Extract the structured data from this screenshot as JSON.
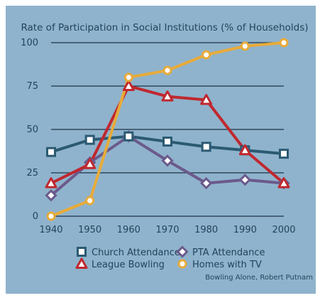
{
  "chart_data": {
    "type": "line",
    "title": "Rate of Participation in Social Institutions (% of Households)",
    "x": [
      1940,
      1950,
      1960,
      1970,
      1980,
      1990,
      2000
    ],
    "xticks": [
      "1940",
      "1950",
      "1960",
      "1970",
      "1980",
      "1990",
      "2000"
    ],
    "ylim": [
      0,
      100
    ],
    "yticks": [
      "0",
      "25",
      "50",
      "75",
      "100"
    ],
    "grid": true,
    "legend_position": "bottom",
    "series": [
      {
        "name": "Church Attendance",
        "marker": "square",
        "color": "#2b5a72",
        "values": [
          37,
          44,
          46,
          43,
          40,
          38,
          36
        ]
      },
      {
        "name": "League Bowling",
        "marker": "triangle",
        "color": "#c0282f",
        "values": [
          19,
          30,
          75,
          69,
          67,
          38,
          19
        ]
      },
      {
        "name": "PTA Attendance",
        "marker": "diamond",
        "color": "#6b5a8c",
        "values": [
          12,
          31,
          46,
          32,
          19,
          21,
          19
        ]
      },
      {
        "name": "Homes with TV",
        "marker": "circle",
        "color": "#e8ab3a",
        "values": [
          0,
          9,
          80,
          84,
          93,
          98,
          100
        ]
      }
    ],
    "caption": "Bowling Alone, Robert Putnam"
  },
  "colors": {
    "panel": "#8fb3cc",
    "text": "#24435c",
    "grid": "#1f3345",
    "marker_fill": "#ffffff"
  }
}
